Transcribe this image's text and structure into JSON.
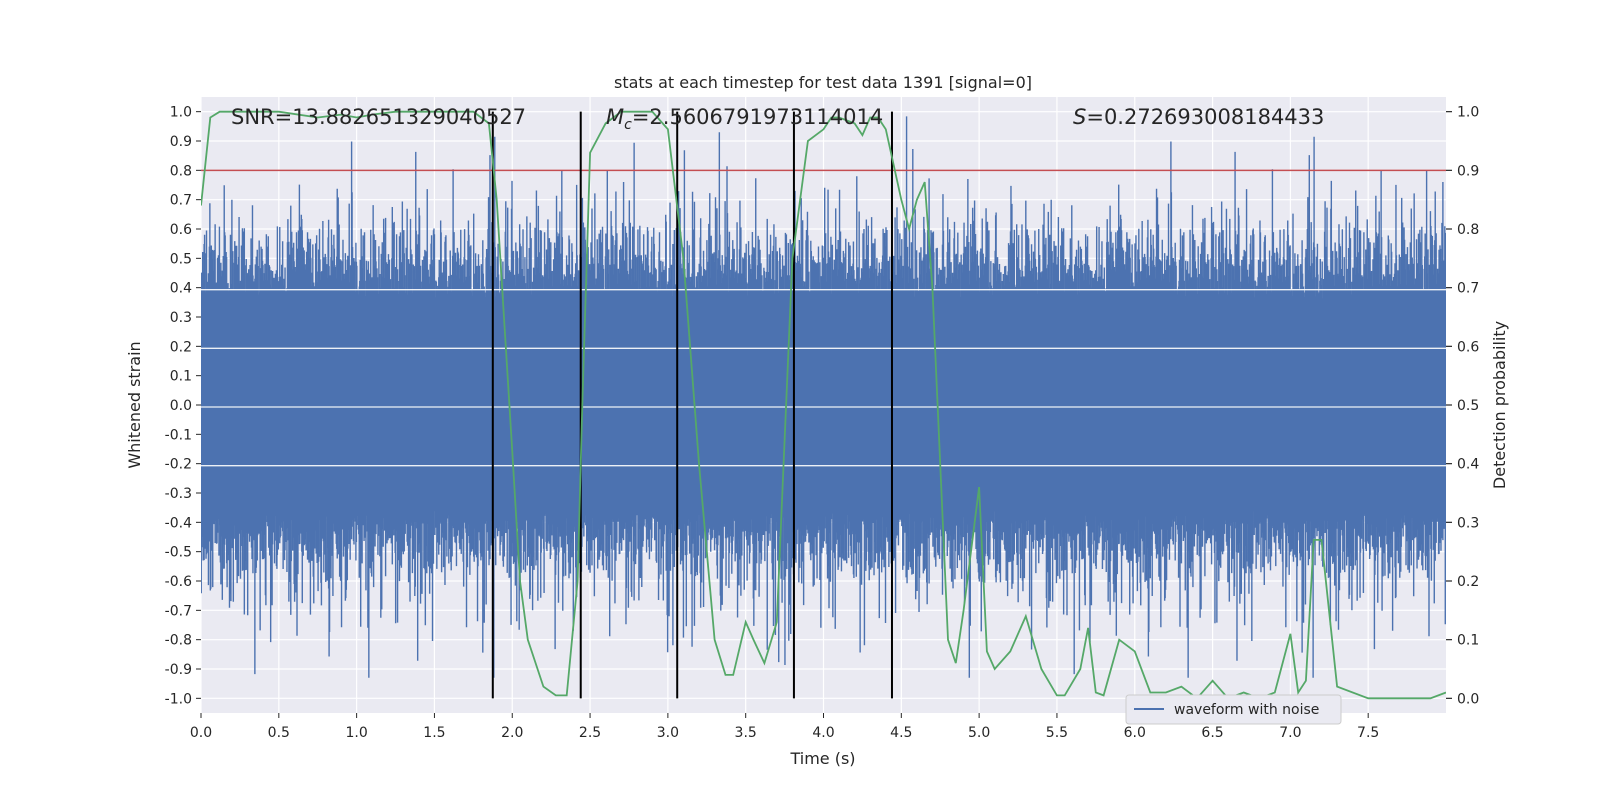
{
  "chart_data": {
    "type": "line",
    "title": "stats at each timestep for test data 1391 [signal=0]",
    "xlabel": "Time (s)",
    "ylabel": "Whitened strain",
    "y2label": "Detection probability",
    "xlim": [
      0.0,
      8.0
    ],
    "ylim": [
      -1.05,
      1.05
    ],
    "y2lim": [
      -0.025,
      1.025
    ],
    "xticks": [
      "0.0",
      "0.5",
      "1.0",
      "1.5",
      "2.0",
      "2.5",
      "3.0",
      "3.5",
      "4.0",
      "4.5",
      "5.0",
      "5.5",
      "6.0",
      "6.5",
      "7.0",
      "7.5"
    ],
    "yticks": [
      "1.0",
      "0.9",
      "0.8",
      "0.7",
      "0.6",
      "0.5",
      "0.4",
      "0.3",
      "0.2",
      "0.1",
      "0.0",
      "-0.1",
      "-0.2",
      "-0.3",
      "-0.4",
      "-0.5",
      "-0.6",
      "-0.7",
      "-0.8",
      "-0.9",
      "-1.0"
    ],
    "y2ticks": [
      "1.0",
      "0.9",
      "0.8",
      "0.7",
      "0.6",
      "0.5",
      "0.4",
      "0.3",
      "0.2",
      "0.1",
      "0.0"
    ],
    "annotations": {
      "snr": "SNR=13.882651329040527",
      "mc_symbol": "M",
      "mc_subscript": "c",
      "mc_value": "=2.5606791973114014",
      "s_symbol": "S",
      "s_value": "=0.272693008184433"
    },
    "threshold": {
      "value": 0.9,
      "axis": "right",
      "color": "#c44e52"
    },
    "event_lines": [
      1.875,
      2.44,
      3.06,
      3.81,
      4.44
    ],
    "legend": {
      "label": "waveform with noise",
      "placement": "lower-right"
    },
    "colors": {
      "waveform": "#4c72b0",
      "probability": "#55a868",
      "threshold": "#c44e52",
      "events": "#000000",
      "background": "#eaeaf2",
      "grid": "#ffffff"
    },
    "series": [
      {
        "name": "waveform with noise",
        "axis": "left",
        "style": "noise",
        "amplitude": 0.55,
        "core": 0.36,
        "peak": 0.93
      },
      {
        "name": "detection probability",
        "axis": "right",
        "x": [
          0.0,
          0.06,
          0.12,
          0.25,
          0.5,
          0.75,
          0.9,
          1.0,
          1.1,
          1.25,
          1.5,
          1.75,
          1.85,
          1.9,
          2.0,
          2.05,
          2.1,
          2.2,
          2.28,
          2.35,
          2.42,
          2.45,
          2.5,
          2.6,
          2.7,
          2.8,
          2.9,
          3.0,
          3.1,
          3.2,
          3.3,
          3.37,
          3.42,
          3.5,
          3.55,
          3.62,
          3.7,
          3.8,
          3.9,
          4.0,
          4.05,
          4.1,
          4.2,
          4.25,
          4.3,
          4.35,
          4.4,
          4.5,
          4.55,
          4.6,
          4.65,
          4.7,
          4.8,
          4.85,
          4.9,
          5.0,
          5.05,
          5.1,
          5.2,
          5.3,
          5.4,
          5.5,
          5.55,
          5.65,
          5.7,
          5.75,
          5.8,
          5.9,
          6.0,
          6.1,
          6.2,
          6.3,
          6.4,
          6.5,
          6.6,
          6.7,
          6.8,
          6.9,
          6.95,
          7.0,
          7.05,
          7.1,
          7.15,
          7.2,
          7.3,
          7.5,
          7.7,
          7.9,
          8.0
        ],
        "y": [
          0.84,
          0.99,
          1.0,
          1.0,
          1.0,
          0.99,
          0.995,
          0.99,
          0.995,
          1.0,
          1.0,
          1.0,
          0.98,
          0.85,
          0.42,
          0.2,
          0.1,
          0.02,
          0.005,
          0.005,
          0.2,
          0.5,
          0.93,
          0.98,
          1.0,
          1.0,
          1.0,
          0.97,
          0.75,
          0.4,
          0.1,
          0.04,
          0.04,
          0.13,
          0.1,
          0.06,
          0.13,
          0.75,
          0.95,
          0.97,
          0.99,
          0.99,
          0.98,
          0.96,
          0.99,
          0.99,
          0.97,
          0.85,
          0.8,
          0.85,
          0.88,
          0.7,
          0.1,
          0.06,
          0.15,
          0.36,
          0.08,
          0.05,
          0.08,
          0.14,
          0.05,
          0.005,
          0.005,
          0.05,
          0.12,
          0.01,
          0.005,
          0.1,
          0.08,
          0.01,
          0.01,
          0.02,
          0.0,
          0.03,
          0.0,
          0.01,
          0.0,
          0.01,
          0.06,
          0.11,
          0.01,
          0.03,
          0.27,
          0.27,
          0.02,
          0.0,
          0.0,
          0.0,
          0.01
        ]
      }
    ]
  }
}
